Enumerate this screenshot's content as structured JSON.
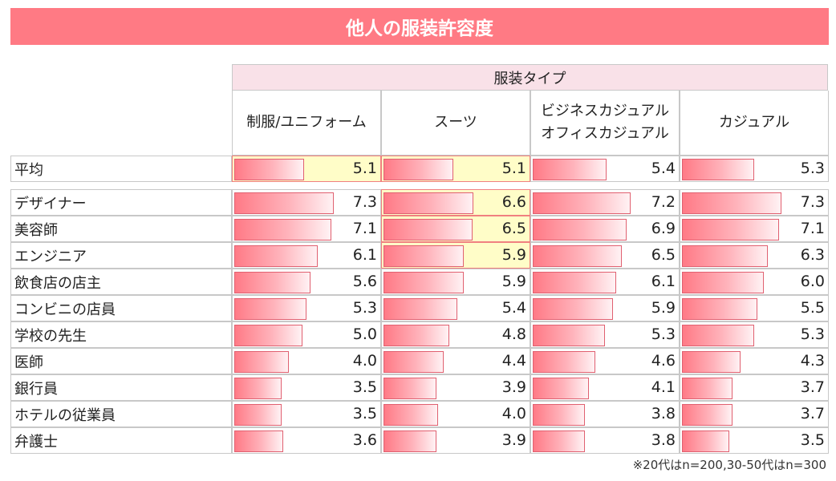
{
  "title": "他人の服装許容度",
  "chart_data": {
    "type": "table",
    "title": "他人の服装許容度",
    "group_header": "服装タイプ",
    "columns": [
      "制服/ユニフォーム",
      "スーツ",
      "ビジネスカジュアル\nオフィスカジュアル",
      "カジュアル"
    ],
    "rows": [
      {
        "label": "平均",
        "values": [
          5.1,
          5.1,
          5.4,
          5.3
        ],
        "highlight": [
          true,
          true,
          false,
          false
        ]
      },
      {
        "label": "デザイナー",
        "values": [
          7.3,
          6.6,
          7.2,
          7.3
        ],
        "highlight": [
          false,
          true,
          false,
          false
        ]
      },
      {
        "label": "美容師",
        "values": [
          7.1,
          6.5,
          6.9,
          7.1
        ],
        "highlight": [
          false,
          true,
          false,
          false
        ]
      },
      {
        "label": "エンジニア",
        "values": [
          6.1,
          5.9,
          6.5,
          6.3
        ],
        "highlight": [
          false,
          true,
          false,
          false
        ]
      },
      {
        "label": "飲食店の店主",
        "values": [
          5.6,
          5.9,
          6.1,
          6.0
        ],
        "highlight": [
          false,
          false,
          false,
          false
        ]
      },
      {
        "label": "コンビニの店員",
        "values": [
          5.3,
          5.4,
          5.9,
          5.5
        ],
        "highlight": [
          false,
          false,
          false,
          false
        ]
      },
      {
        "label": "学校の先生",
        "values": [
          5.0,
          4.8,
          5.3,
          5.3
        ],
        "highlight": [
          false,
          false,
          false,
          false
        ]
      },
      {
        "label": "医師",
        "values": [
          4.0,
          4.4,
          4.6,
          4.3
        ],
        "highlight": [
          false,
          false,
          false,
          false
        ]
      },
      {
        "label": "銀行員",
        "values": [
          3.5,
          3.9,
          4.1,
          3.7
        ],
        "highlight": [
          false,
          false,
          false,
          false
        ]
      },
      {
        "label": "ホテルの従業員",
        "values": [
          3.5,
          4.0,
          3.8,
          3.7
        ],
        "highlight": [
          false,
          false,
          false,
          false
        ]
      },
      {
        "label": "弁護士",
        "values": [
          3.6,
          3.9,
          3.8,
          3.5
        ],
        "highlight": [
          false,
          false,
          false,
          false
        ]
      }
    ],
    "value_max": 10,
    "bar_colors": {
      "start": "#ff7a86",
      "end": "#fff2f4",
      "border": "#e06070"
    },
    "highlight_color": "#fffdc8"
  },
  "footnote": "※20代はn=200,30-50代はn=300"
}
